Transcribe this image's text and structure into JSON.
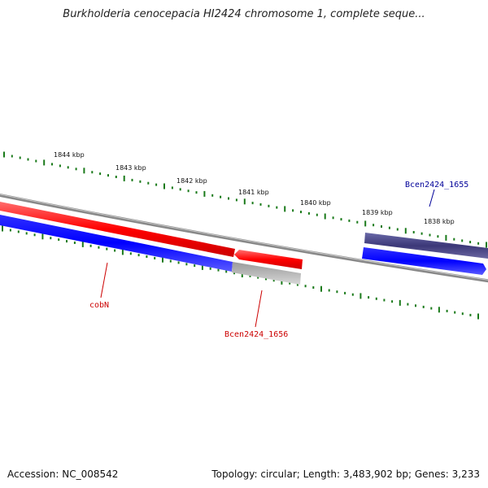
{
  "title": "Burkholderia cenocepacia HI2424 chromosome 1, complete seque...",
  "footer": {
    "accession": "Accession: NC_008542",
    "topology": "Topology: circular; Length: 3,483,902 bp; Genes: 3,233"
  },
  "colors": {
    "forward_cds": "#ff0000",
    "reverse_cds": "#0000ff",
    "pseudo": "#b8b8b8",
    "highlight": "#3c3878",
    "backbone": "#888888",
    "ticks": "#1a7a1a",
    "label_red": "#cc0000",
    "label_blue": "#000099"
  },
  "ticks": [
    "1844 kbp",
    "1843 kbp",
    "1842 kbp",
    "1841 kbp",
    "1840 kbp",
    "1839 kbp",
    "1838 kbp"
  ],
  "gene_labels": [
    {
      "id": "cobN",
      "text": "cobN",
      "color": "label_red"
    },
    {
      "id": "bcen1656",
      "text": "Bcen2424_1656",
      "color": "label_red"
    },
    {
      "id": "bcen1655",
      "text": "Bcen2424_1655",
      "color": "label_blue"
    }
  ]
}
